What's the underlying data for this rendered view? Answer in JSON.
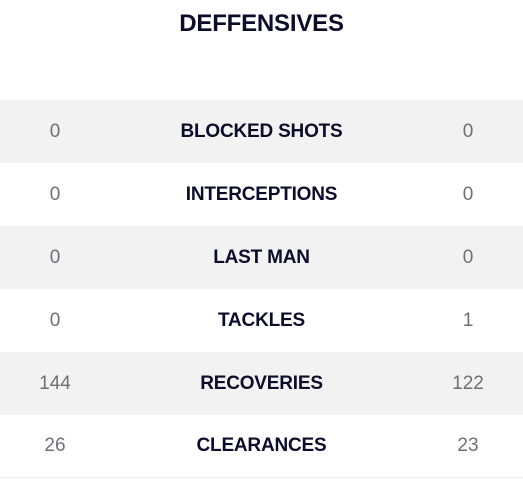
{
  "section": {
    "title": "DEFFENSIVES"
  },
  "stats": [
    {
      "label": "BLOCKED SHOTS",
      "home": "0",
      "away": "0"
    },
    {
      "label": "INTERCEPTIONS",
      "home": "0",
      "away": "0"
    },
    {
      "label": "LAST MAN",
      "home": "0",
      "away": "0"
    },
    {
      "label": "TACKLES",
      "home": "0",
      "away": "1"
    },
    {
      "label": "RECOVERIES",
      "home": "144",
      "away": "122"
    },
    {
      "label": "CLEARANCES",
      "home": "26",
      "away": "23"
    }
  ],
  "colors": {
    "title": "#0b0d2a",
    "value": "#6f6f78",
    "row_alt": "#f2f2f2"
  }
}
